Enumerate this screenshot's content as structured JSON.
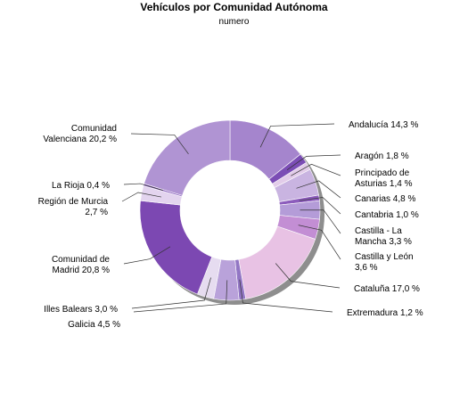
{
  "chart_data": {
    "type": "pie",
    "variant": "donut",
    "title": "Vehículos por Comunidad Autónoma",
    "subtitle": "numero",
    "slices": [
      {
        "label": "Andalucía 14,3 %",
        "value": 14.3,
        "color": "#a585cd"
      },
      {
        "label": "Aragón 1,8 %",
        "value": 1.8,
        "color": "#7b4db5"
      },
      {
        "label": "Principado de Asturias 1,4 %",
        "value": 1.4,
        "color": "#e2cce9"
      },
      {
        "label": "Canarias 4,8 %",
        "value": 4.8,
        "color": "#c9b4e1"
      },
      {
        "label": "Cantabria 1,0 %",
        "value": 1.0,
        "color": "#8c5cbc"
      },
      {
        "label": "Castilla - La Mancha 3,3 %",
        "value": 3.3,
        "color": "#b49cd8"
      },
      {
        "label": "Castilla y León 3,6 %",
        "value": 3.6,
        "color": "#c38ed4"
      },
      {
        "label": "Cataluña 17,0 %",
        "value": 17.0,
        "color": "#e8c2e4"
      },
      {
        "label": "Extremadura 1,2 %",
        "value": 1.2,
        "color": "#9276c4"
      },
      {
        "label": "Galicia 4,5 %",
        "value": 4.5,
        "color": "#b9a2da"
      },
      {
        "label": "Illes Balears 3,0 %",
        "value": 3.0,
        "color": "#e6dcf0"
      },
      {
        "label": "Comunidad de Madrid 20,8 %",
        "value": 20.8,
        "color": "#7c48b2"
      },
      {
        "label": "Región de Murcia 2,7 %",
        "value": 2.7,
        "color": "#e3d4ef"
      },
      {
        "label": "La Rioja 0,4 %",
        "value": 0.4,
        "color": "#8e66c0"
      },
      {
        "label": "Comunidad Valenciana 20,2 %",
        "value": 20.2,
        "color": "#b094d3"
      }
    ]
  }
}
